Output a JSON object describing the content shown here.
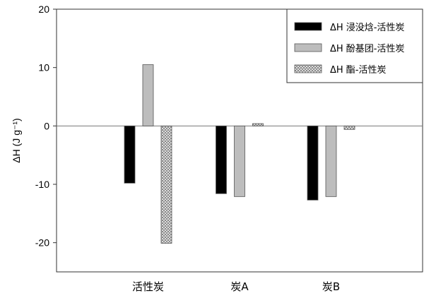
{
  "chart_data": {
    "type": "bar",
    "title": "",
    "xlabel": "",
    "ylabel": "ΔH (J g⁻¹)",
    "ylim": [
      -25,
      20
    ],
    "yticks": [
      -20,
      -10,
      0,
      10,
      20
    ],
    "grid": false,
    "legend_placement": "top-right",
    "categories": [
      "活性炭",
      "炭A",
      "炭B"
    ],
    "series": [
      {
        "name": "ΔH 浸没焓-活性炭",
        "values": [
          -9.8,
          -11.6,
          -12.7
        ],
        "color": "#000000",
        "pattern": "solid"
      },
      {
        "name": "ΔH 酚基团-活性炭",
        "values": [
          10.5,
          -12.1,
          -12.1
        ],
        "color": "#bdbdbd",
        "pattern": "solid"
      },
      {
        "name": "ΔH 酯-活性炭",
        "values": [
          -20.1,
          0.4,
          -0.6
        ],
        "color": "#d8d8d8",
        "pattern": "crosshatch"
      }
    ]
  }
}
